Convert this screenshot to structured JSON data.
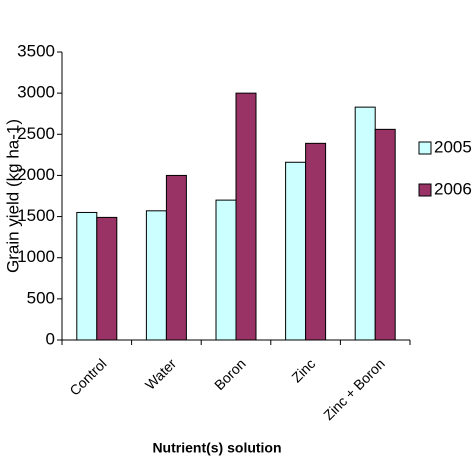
{
  "chart_data": {
    "type": "bar",
    "y_label": "Grain yield (kg ha-1)",
    "x_label": "Nutrient(s) solution",
    "categories": [
      "Control",
      "Water",
      "Boron",
      "Zinc",
      "Zinc + Boron"
    ],
    "series": [
      {
        "name": "2005",
        "color": "#ccffff",
        "values": [
          1550,
          1570,
          1700,
          2160,
          2830
        ]
      },
      {
        "name": "2006",
        "color": "#993366",
        "values": [
          1490,
          2000,
          3000,
          2390,
          2560
        ]
      }
    ],
    "ylim": [
      0,
      3500
    ],
    "yticks": [
      0,
      500,
      1000,
      1500,
      2000,
      2500,
      3000,
      3500
    ],
    "grid": false,
    "legend": "right"
  }
}
